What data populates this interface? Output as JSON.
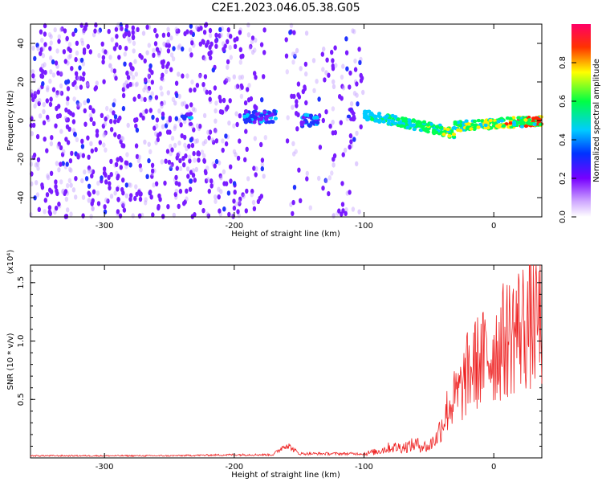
{
  "title": "C2E1.2023.046.05.38.G05",
  "colors": {
    "snr_line": "#ee2222",
    "axis": "#000000",
    "background": "#ffffff"
  },
  "chart_data": [
    {
      "type": "heatmap",
      "xlabel": "Height of straight line (km)",
      "ylabel": "Frequency (Hz)",
      "xlim": [
        -357,
        37
      ],
      "ylim": [
        -50,
        50
      ],
      "x_ticks": [
        -300,
        -200,
        -100,
        0
      ],
      "y_ticks": [
        -40,
        -20,
        0,
        20,
        40
      ],
      "grid": false,
      "colorbar": {
        "label": "Normalized spectral amplitude",
        "range": [
          0,
          1
        ],
        "ticks": [
          "0.0",
          "0.2",
          "0.4",
          "0.6",
          "0.8"
        ],
        "colormap": [
          "#ffffff",
          "#7700ff",
          "#0000ff",
          "#00ffff",
          "#00ff00",
          "#ffff00",
          "#ff0000",
          "#ff0080"
        ]
      },
      "features": [
        {
          "x_range": [
            -357,
            -195
          ],
          "freq_range": [
            -50,
            50
          ],
          "amplitude": 0.25
        },
        {
          "x_range": [
            -190,
            -170
          ],
          "freq_center": 2,
          "amplitude": 0.45
        },
        {
          "x_range": [
            -155,
            -135
          ],
          "freq_center": 0,
          "amplitude": 0.4
        },
        {
          "x_range": [
            -100,
            37
          ],
          "freq_center_start": 3,
          "freq_center_end": 0,
          "amplitude": 0.9
        }
      ]
    },
    {
      "type": "line",
      "xlabel": "Height of straight line (km)",
      "ylabel": "SNR (10 * v/v)",
      "y_multiplier": "(x10⁴)",
      "xlim": [
        -357,
        37
      ],
      "ylim": [
        0,
        1.65
      ],
      "x_ticks": [
        -300,
        -200,
        -100,
        0
      ],
      "y_ticks": [
        "0.5",
        "1.0",
        "1.5"
      ],
      "grid": false,
      "series": [
        {
          "x": [
            -357,
            -300,
            -250,
            -200,
            -170,
            -160,
            -150,
            -120,
            -100,
            -90,
            -80,
            -70,
            -60,
            -50,
            -45,
            -40,
            -35,
            -30,
            -25,
            -20,
            -15,
            -10,
            -5,
            0,
            5,
            10,
            15,
            20,
            25,
            30,
            37
          ],
          "values": [
            0.02,
            0.02,
            0.02,
            0.03,
            0.03,
            0.13,
            0.04,
            0.04,
            0.04,
            0.06,
            0.1,
            0.1,
            0.13,
            0.1,
            0.2,
            0.4,
            0.6,
            0.7,
            0.8,
            1.0,
            1.1,
            1.15,
            1.2,
            1.25,
            1.35,
            1.4,
            1.5,
            1.55,
            1.57,
            1.6,
            1.62
          ]
        }
      ]
    }
  ]
}
